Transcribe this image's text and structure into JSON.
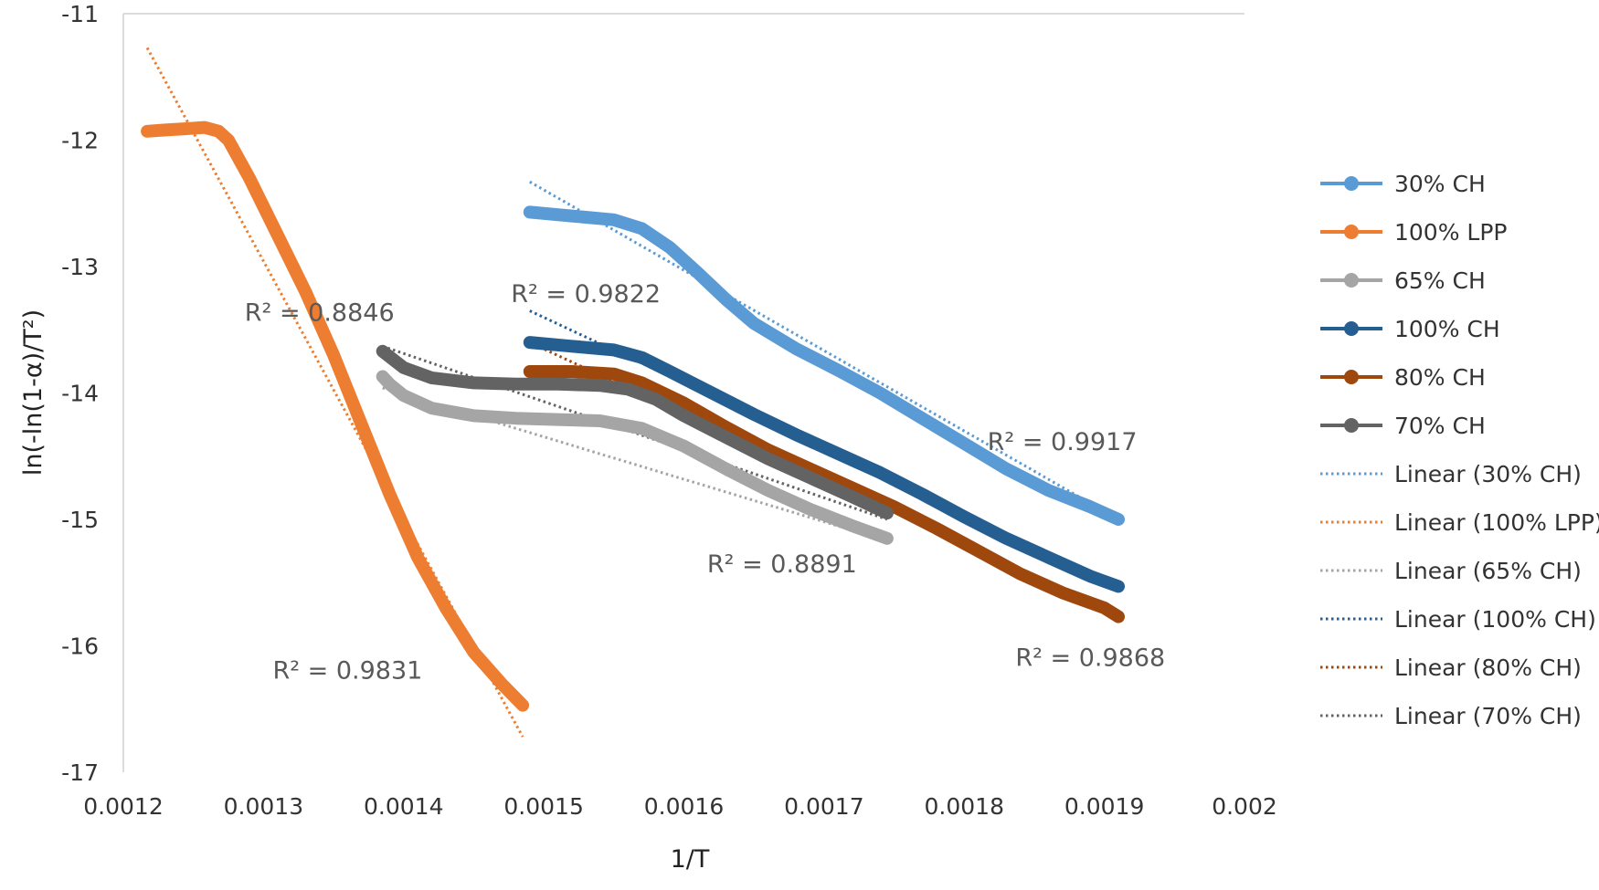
{
  "chart_data": {
    "type": "line",
    "title": "",
    "xlabel": "1/T",
    "ylabel": "ln(-ln(1-α)/T²)",
    "xlim": [
      0.0012,
      0.002
    ],
    "ylim": [
      -17,
      -11
    ],
    "x_ticks": [
      "0.0012",
      "0.0013",
      "0.0014",
      "0.0015",
      "0.0016",
      "0.0017",
      "0.0018",
      "0.0019",
      "0.002"
    ],
    "y_ticks": [
      "-11",
      "-12",
      "-13",
      "-14",
      "-15",
      "-16",
      "-17"
    ],
    "legend_position": "right",
    "series": [
      {
        "name": "30% CH",
        "color": "#5B9BD5",
        "x": [
          0.00149,
          0.00152,
          0.00155,
          0.00157,
          0.00159,
          0.00161,
          0.00163,
          0.00165,
          0.00168,
          0.00171,
          0.00174,
          0.00177,
          0.0018,
          0.00183,
          0.00186,
          0.00189,
          0.00191
        ],
        "y": [
          -12.57,
          -12.6,
          -12.63,
          -12.7,
          -12.85,
          -13.05,
          -13.26,
          -13.45,
          -13.65,
          -13.82,
          -14.0,
          -14.2,
          -14.4,
          -14.6,
          -14.77,
          -14.9,
          -15.0
        ]
      },
      {
        "name": "100% LPP",
        "color": "#ED7D31",
        "x": [
          0.001217,
          0.00123,
          0.001245,
          0.001258,
          0.001268,
          0.001275,
          0.00129,
          0.00131,
          0.00133,
          0.00135,
          0.00137,
          0.00139,
          0.00141,
          0.00143,
          0.00145,
          0.00147,
          0.001485
        ],
        "y": [
          -11.93,
          -11.92,
          -11.91,
          -11.9,
          -11.93,
          -12.0,
          -12.3,
          -12.75,
          -13.2,
          -13.7,
          -14.25,
          -14.8,
          -15.3,
          -15.7,
          -16.05,
          -16.3,
          -16.47
        ]
      },
      {
        "name": "65% CH",
        "color": "#A5A5A5",
        "x": [
          0.001385,
          0.00139,
          0.0014,
          0.00142,
          0.00145,
          0.00148,
          0.00151,
          0.00154,
          0.00157,
          0.0016,
          0.00163,
          0.00166,
          0.00169,
          0.00172,
          0.001745
        ],
        "y": [
          -13.87,
          -13.93,
          -14.02,
          -14.12,
          -14.18,
          -14.2,
          -14.21,
          -14.22,
          -14.28,
          -14.42,
          -14.6,
          -14.77,
          -14.92,
          -15.05,
          -15.15
        ]
      },
      {
        "name": "100% CH",
        "color": "#255E91",
        "x": [
          0.00149,
          0.00152,
          0.00155,
          0.00157,
          0.00159,
          0.00162,
          0.00165,
          0.00168,
          0.00171,
          0.00174,
          0.00177,
          0.0018,
          0.00183,
          0.00186,
          0.00189,
          0.00191
        ],
        "y": [
          -13.6,
          -13.63,
          -13.66,
          -13.72,
          -13.83,
          -14.0,
          -14.17,
          -14.33,
          -14.48,
          -14.63,
          -14.8,
          -14.98,
          -15.15,
          -15.3,
          -15.45,
          -15.53
        ]
      },
      {
        "name": "80% CH",
        "color": "#9E480E",
        "x": [
          0.00149,
          0.00152,
          0.00155,
          0.00157,
          0.0016,
          0.00163,
          0.00166,
          0.00169,
          0.00172,
          0.00175,
          0.00178,
          0.00181,
          0.00184,
          0.00187,
          0.0019,
          0.00191
        ],
        "y": [
          -13.83,
          -13.83,
          -13.85,
          -13.92,
          -14.08,
          -14.27,
          -14.45,
          -14.6,
          -14.75,
          -14.9,
          -15.07,
          -15.25,
          -15.43,
          -15.58,
          -15.7,
          -15.77
        ]
      },
      {
        "name": "70% CH",
        "color": "#636363",
        "x": [
          0.001385,
          0.0014,
          0.00142,
          0.00145,
          0.00148,
          0.00151,
          0.00154,
          0.00156,
          0.00158,
          0.0016,
          0.00163,
          0.00166,
          0.00169,
          0.00172,
          0.001745
        ],
        "y": [
          -13.67,
          -13.8,
          -13.88,
          -13.92,
          -13.93,
          -13.93,
          -13.94,
          -13.97,
          -14.05,
          -14.18,
          -14.35,
          -14.52,
          -14.67,
          -14.82,
          -14.95
        ]
      }
    ],
    "trendlines": [
      {
        "name": "Linear (30% CH)",
        "color": "#5B9BD5",
        "x": [
          0.00149,
          0.00191
        ],
        "y": [
          -12.33,
          -15.0
        ],
        "r2_label": "R² = 0.9917",
        "label_x": 0.00187,
        "label_y": -14.45
      },
      {
        "name": "Linear (100% LPP)",
        "color": "#ED7D31",
        "x": [
          0.001217,
          0.001485
        ],
        "y": [
          -11.27,
          -16.72
        ],
        "r2_label": "R² = 0.9831",
        "label_x": 0.00136,
        "label_y": -16.26
      },
      {
        "name": "Linear (65% CH)",
        "color": "#A5A5A5",
        "x": [
          0.001385,
          0.001745
        ],
        "y": [
          -13.96,
          -15.17
        ],
        "r2_label": "R² = 0.8891",
        "label_x": 0.00167,
        "label_y": -15.42
      },
      {
        "name": "Linear (100% CH)",
        "color": "#255E91",
        "x": [
          0.00149,
          0.00191
        ],
        "y": [
          -13.35,
          -15.53
        ],
        "r2_label": "R² = 0.9822",
        "label_x": 0.00153,
        "label_y": -13.28
      },
      {
        "name": "Linear (80% CH)",
        "color": "#9E480E",
        "x": [
          0.00149,
          0.00191
        ],
        "y": [
          -13.6,
          -15.77
        ],
        "r2_label": "R² = 0.9868",
        "label_x": 0.00189,
        "label_y": -16.16
      },
      {
        "name": "Linear (70% CH)",
        "color": "#636363",
        "x": [
          0.001385,
          0.001745
        ],
        "y": [
          -13.63,
          -15.0
        ],
        "r2_label": "R² = 0.8846",
        "label_x": 0.00134,
        "label_y": -13.43
      }
    ]
  }
}
